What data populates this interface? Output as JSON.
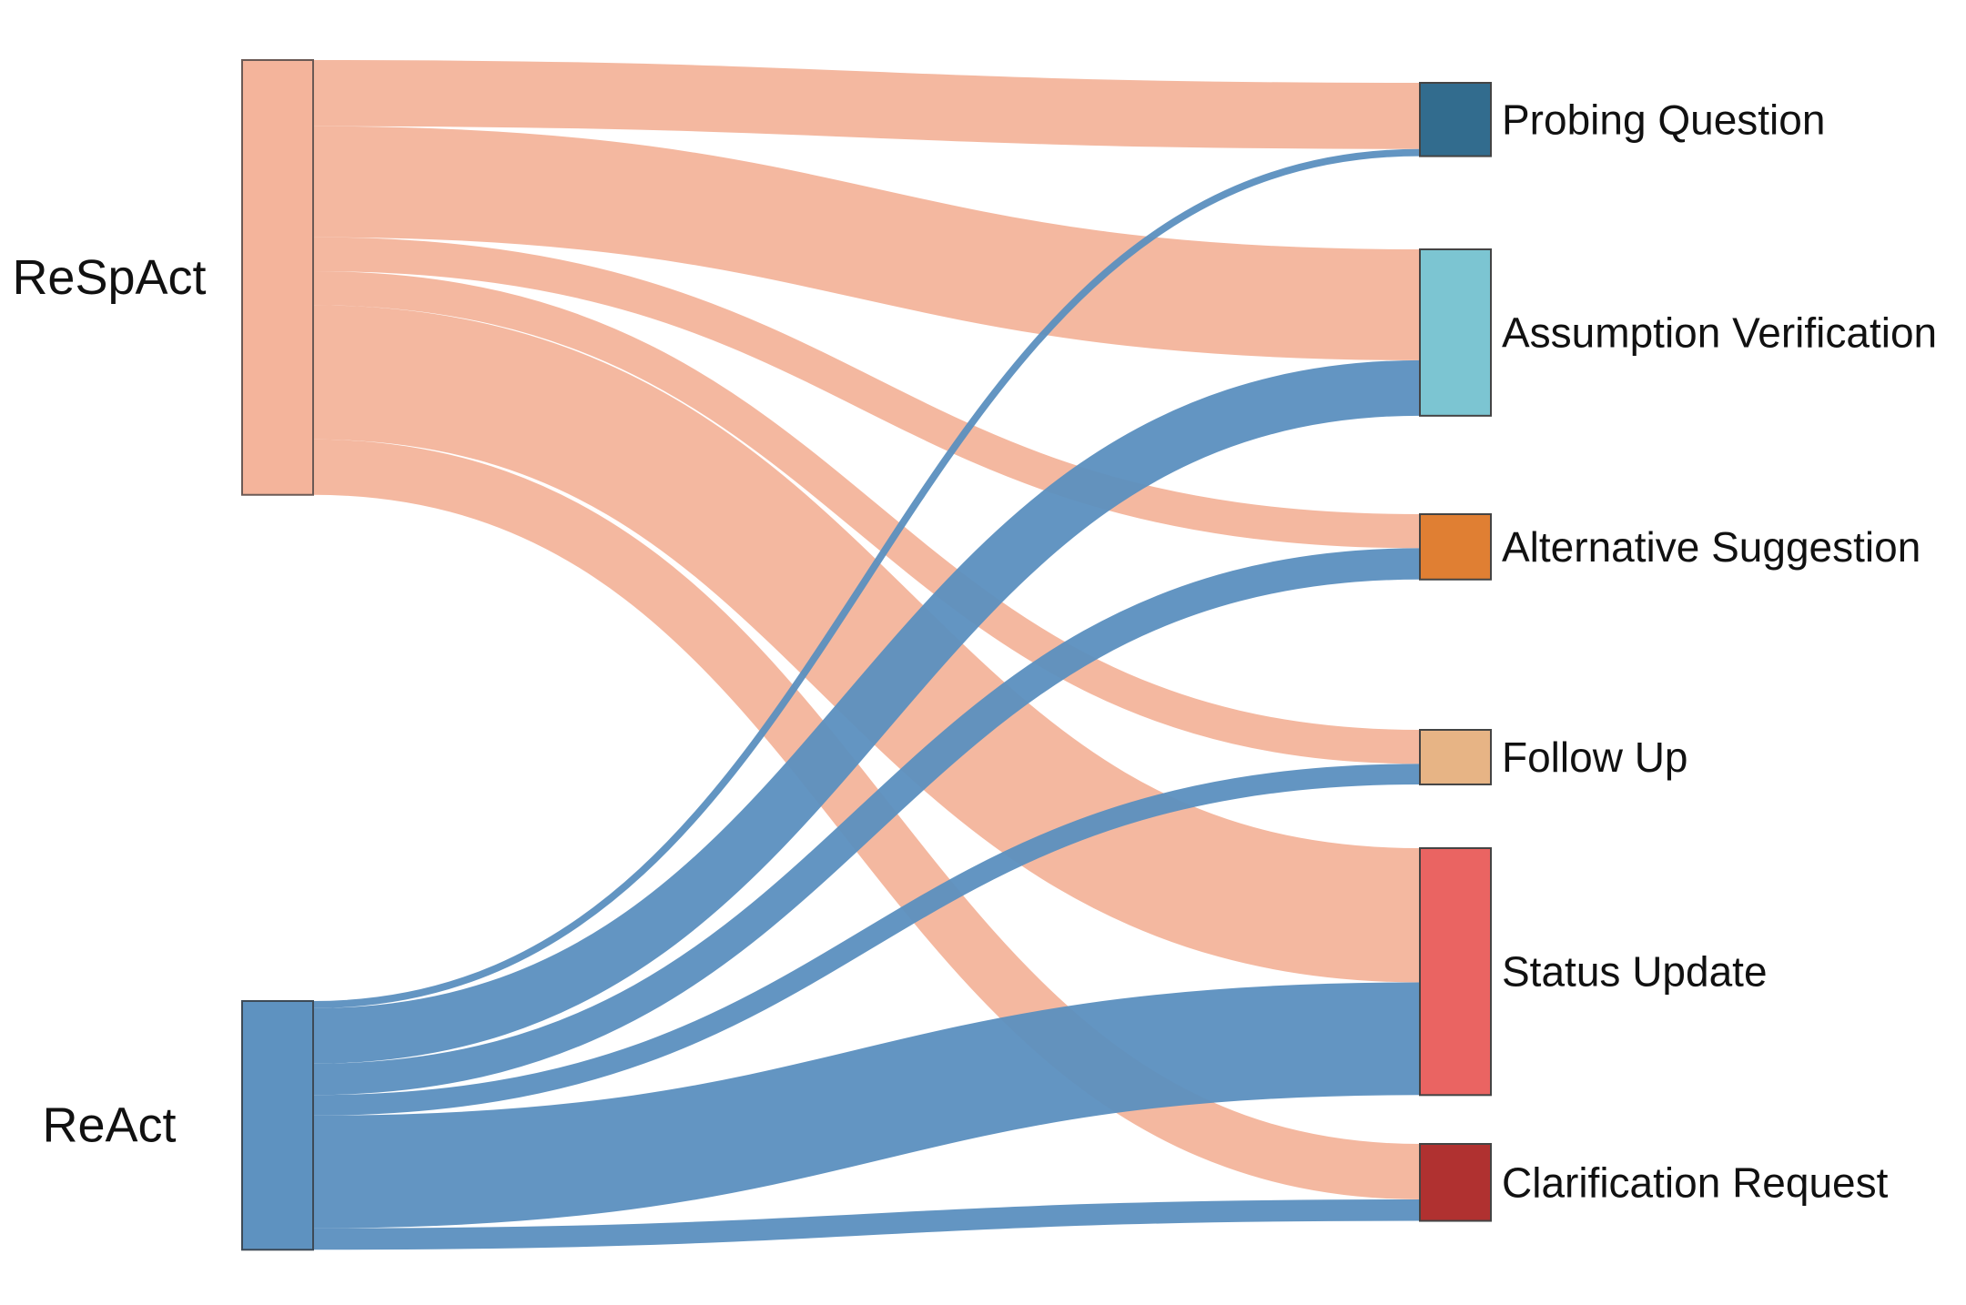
{
  "chart_data": {
    "type": "sankey",
    "title": "",
    "sources": [
      {
        "name": "ReSpAct",
        "color": "#f4b49b",
        "border": "#6b5a55"
      },
      {
        "name": "ReAct",
        "color": "#5e92c0",
        "border": "#3d4a57"
      }
    ],
    "targets": [
      {
        "name": "Probing Question",
        "color": "#326c8e"
      },
      {
        "name": "Assumption Verification",
        "color": "#7cc5d2"
      },
      {
        "name": "Alternative Suggestion",
        "color": "#e07f33"
      },
      {
        "name": "Follow Up",
        "color": "#e7b485"
      },
      {
        "name": "Status Update",
        "color": "#ea6462"
      },
      {
        "name": "Clarification Request",
        "color": "#b03130"
      }
    ],
    "link_colors": {
      "ReSpAct": "#f3b49b",
      "ReAct": "#5b8fbf"
    },
    "links": [
      {
        "source": "ReSpAct",
        "target": "Probing Question",
        "value": 74
      },
      {
        "source": "ReSpAct",
        "target": "Assumption Verification",
        "value": 124
      },
      {
        "source": "ReSpAct",
        "target": "Alternative Suggestion",
        "value": 38
      },
      {
        "source": "ReSpAct",
        "target": "Follow Up",
        "value": 38
      },
      {
        "source": "ReSpAct",
        "target": "Status Update",
        "value": 150
      },
      {
        "source": "ReSpAct",
        "target": "Clarification Request",
        "value": 62
      },
      {
        "source": "ReAct",
        "target": "Probing Question",
        "value": 8
      },
      {
        "source": "ReAct",
        "target": "Assumption Verification",
        "value": 62
      },
      {
        "source": "ReAct",
        "target": "Alternative Suggestion",
        "value": 35
      },
      {
        "source": "ReAct",
        "target": "Follow Up",
        "value": 23
      },
      {
        "source": "ReAct",
        "target": "Status Update",
        "value": 126
      },
      {
        "source": "ReAct",
        "target": "Clarification Request",
        "value": 24
      }
    ]
  }
}
